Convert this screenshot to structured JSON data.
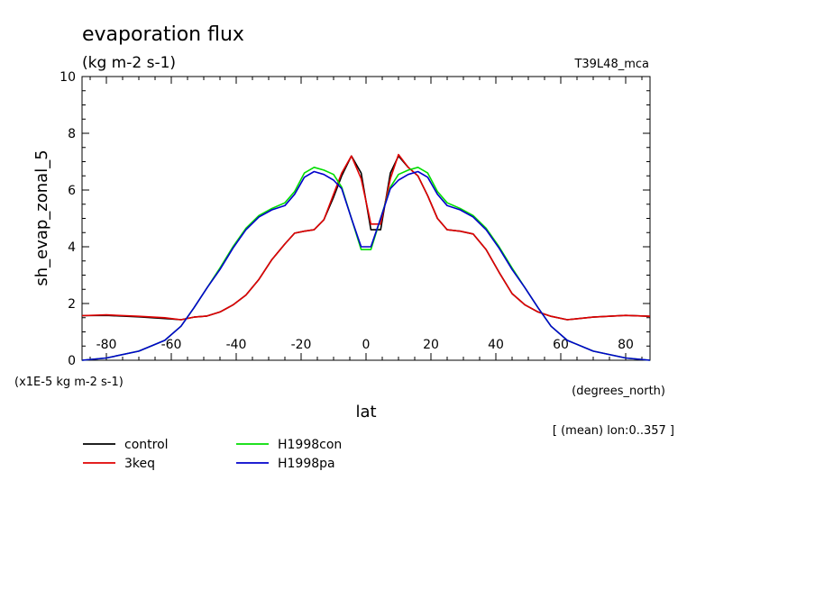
{
  "chart_data": {
    "type": "line",
    "title": "evaporation flux",
    "units": "(kg m-2 s-1)",
    "run_label": "T39L48_mca",
    "ylabel": "sh_evap_zonal_5",
    "xlabel": "lat",
    "x_units": "(degrees_north)",
    "scale_note": "(x1E-5 kg m-2 s-1)",
    "subset_note": "[ (mean) lon:0..357 ]",
    "xlim": [
      -87.5,
      87.5
    ],
    "ylim": [
      0,
      10
    ],
    "x_ticks": [
      -80,
      -60,
      -40,
      -20,
      0,
      20,
      40,
      60,
      80
    ],
    "x_tick_labels": [
      "-80",
      "-60",
      "-40",
      "-20",
      "0",
      "20",
      "40",
      "60",
      "80"
    ],
    "y_ticks": [
      0,
      2,
      4,
      6,
      8,
      10
    ],
    "y_tick_labels": [
      "0",
      "2",
      "4",
      "6",
      "8",
      "10"
    ],
    "series": [
      {
        "name": "control",
        "color": "#000000",
        "x": [
          -87.5,
          -80,
          -70,
          -62,
          -57,
          -53,
          -49,
          -45,
          -41,
          -37,
          -33,
          -29,
          -25,
          -22,
          -19,
          -16,
          -13,
          -10,
          -7.5,
          -4.5,
          -1.5,
          1.5,
          4.5,
          7.5,
          10,
          13,
          16,
          19,
          22,
          25,
          29,
          33,
          37,
          41,
          45,
          49,
          53,
          57,
          62,
          70,
          80,
          87.5
        ],
        "y": [
          1.57,
          1.58,
          1.53,
          1.47,
          1.43,
          1.52,
          1.56,
          1.7,
          1.95,
          2.3,
          2.85,
          3.55,
          4.1,
          4.48,
          4.55,
          4.6,
          4.95,
          5.75,
          6.5,
          7.2,
          6.6,
          4.6,
          4.6,
          6.6,
          7.2,
          6.8,
          6.5,
          5.8,
          5.0,
          4.6,
          4.55,
          4.45,
          3.9,
          3.1,
          2.35,
          1.95,
          1.7,
          1.55,
          1.43,
          1.52,
          1.58,
          1.55
        ]
      },
      {
        "name": "3keq",
        "color": "#e00000",
        "x": [
          -87.5,
          -80,
          -70,
          -62,
          -57,
          -53,
          -49,
          -45,
          -41,
          -37,
          -33,
          -29,
          -25,
          -22,
          -19,
          -16,
          -13,
          -10,
          -7.5,
          -4.5,
          -1.5,
          1.5,
          4.5,
          7.5,
          10,
          13,
          16,
          19,
          22,
          25,
          29,
          33,
          37,
          41,
          45,
          49,
          53,
          57,
          62,
          70,
          80,
          87.5
        ],
        "y": [
          1.57,
          1.6,
          1.55,
          1.5,
          1.43,
          1.52,
          1.56,
          1.7,
          1.95,
          2.3,
          2.85,
          3.55,
          4.1,
          4.48,
          4.55,
          4.6,
          4.95,
          5.85,
          6.6,
          7.2,
          6.4,
          4.8,
          4.8,
          6.4,
          7.25,
          6.8,
          6.5,
          5.8,
          5.0,
          4.6,
          4.55,
          4.45,
          3.9,
          3.1,
          2.35,
          1.95,
          1.7,
          1.55,
          1.43,
          1.52,
          1.58,
          1.55
        ]
      },
      {
        "name": "H1998con",
        "color": "#00dd00",
        "x": [
          -87.5,
          -80,
          -70,
          -62,
          -57,
          -53,
          -49,
          -45,
          -41,
          -37,
          -33,
          -29,
          -25,
          -22,
          -19,
          -16,
          -13,
          -10,
          -7.5,
          -4.5,
          -1.5,
          1.5,
          4.5,
          7.5,
          10,
          13,
          16,
          19,
          22,
          25,
          29,
          33,
          37,
          41,
          45,
          49,
          53,
          57,
          62,
          70,
          80,
          87.5
        ],
        "y": [
          0.0,
          0.08,
          0.32,
          0.7,
          1.2,
          1.85,
          2.55,
          3.25,
          4.0,
          4.65,
          5.1,
          5.35,
          5.55,
          5.95,
          6.6,
          6.8,
          6.7,
          6.55,
          6.1,
          5.0,
          3.9,
          3.9,
          5.0,
          6.1,
          6.55,
          6.7,
          6.8,
          6.6,
          5.95,
          5.55,
          5.35,
          5.1,
          4.65,
          4.0,
          3.25,
          2.55,
          1.85,
          1.2,
          0.7,
          0.32,
          0.08,
          0.0
        ]
      },
      {
        "name": "H1998pa",
        "color": "#0000cc",
        "x": [
          -87.5,
          -80,
          -70,
          -62,
          -57,
          -53,
          -49,
          -45,
          -41,
          -37,
          -33,
          -29,
          -25,
          -22,
          -19,
          -16,
          -13,
          -10,
          -7.5,
          -4.5,
          -1.5,
          1.5,
          4.5,
          7.5,
          10,
          13,
          16,
          19,
          22,
          25,
          29,
          33,
          37,
          41,
          45,
          49,
          53,
          57,
          62,
          70,
          80,
          87.5
        ],
        "y": [
          0.0,
          0.08,
          0.32,
          0.7,
          1.2,
          1.85,
          2.55,
          3.2,
          3.95,
          4.6,
          5.05,
          5.3,
          5.45,
          5.85,
          6.45,
          6.65,
          6.55,
          6.35,
          6.05,
          5.0,
          4.0,
          4.0,
          5.0,
          6.05,
          6.35,
          6.55,
          6.65,
          6.45,
          5.85,
          5.45,
          5.3,
          5.05,
          4.6,
          3.95,
          3.2,
          2.55,
          1.85,
          1.2,
          0.7,
          0.32,
          0.08,
          0.0
        ]
      }
    ]
  }
}
